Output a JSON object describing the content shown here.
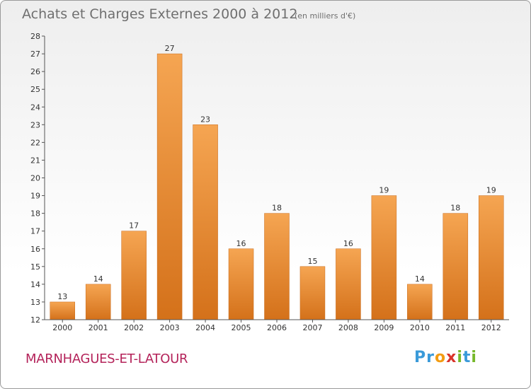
{
  "title": "Achats et Charges Externes 2000 à 2012",
  "unit": "(en milliers d'€)",
  "commune": "MARNHAGUES-ET-LATOUR",
  "logo": {
    "letters": [
      "P",
      "r",
      "o",
      "x",
      "i",
      "t",
      "i"
    ],
    "colors": [
      "#3a9ad9",
      "#3a9ad9",
      "#f39c12",
      "#d9342b",
      "#76b82a",
      "#3a9ad9",
      "#76b82a"
    ]
  },
  "colors": {
    "bar_top": "#f5a552",
    "bar_bottom": "#d4711a",
    "bar_stroke": "#c86a1a",
    "axis": "#555555",
    "grid": "#d0d0d0"
  },
  "chart_data": {
    "type": "bar",
    "categories": [
      "2000",
      "2001",
      "2002",
      "2003",
      "2004",
      "2005",
      "2006",
      "2007",
      "2008",
      "2009",
      "2010",
      "2011",
      "2012"
    ],
    "values": [
      13,
      14,
      17,
      27,
      23,
      16,
      18,
      15,
      16,
      19,
      14,
      18,
      19
    ],
    "ylim": [
      12,
      28
    ],
    "yticks": [
      12,
      13,
      14,
      15,
      16,
      17,
      18,
      19,
      20,
      21,
      22,
      23,
      24,
      25,
      26,
      27,
      28
    ],
    "xlabel": "",
    "ylabel": "",
    "grid": false,
    "data_labels": true
  }
}
